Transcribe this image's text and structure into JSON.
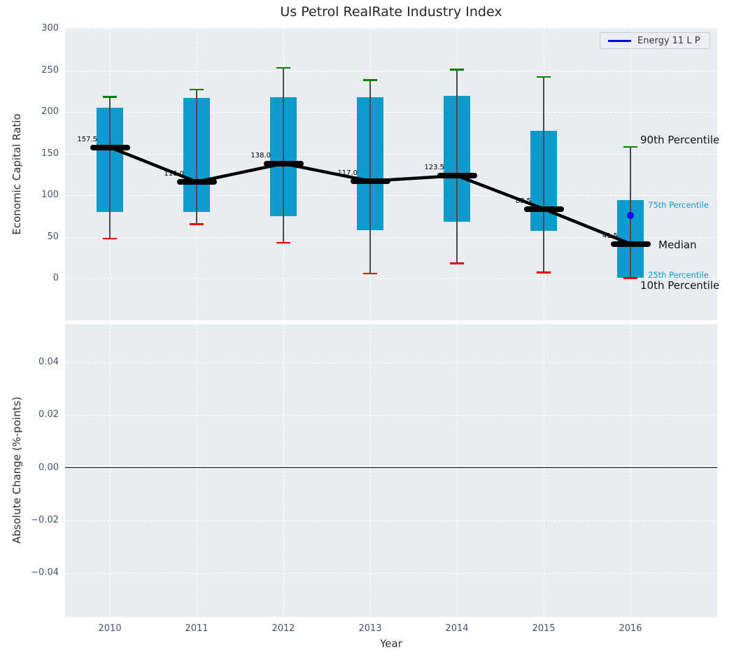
{
  "title": "Us Petrol RealRate Industry Index",
  "legend": {
    "label": "Energy 11 L P",
    "line_color": "#0000ee"
  },
  "colors": {
    "axes_bg": "#e9ecf0",
    "grid": "#ffffff",
    "box_fill": "#0f9bcb",
    "whisker": "#4a4a4a",
    "cap_high": "#008000",
    "cap_low": "#e60000",
    "median_bar": "#000000",
    "trend_line": "#000000",
    "point_blue": "#0000ee",
    "tick_label": "#44546a",
    "percentile_small_label": "#0f9bcb",
    "percentile_large_label": "#111111",
    "zero_line": "#000000"
  },
  "chart_data": [
    {
      "type": "boxplot",
      "title": "Us Petrol RealRate Industry Index",
      "xlabel": "Year",
      "ylabel": "Economic Capital Ratio",
      "categories": [
        "2010",
        "2011",
        "2012",
        "2013",
        "2014",
        "2015",
        "2016"
      ],
      "ylim": [
        -50,
        300
      ],
      "grid": true,
      "yticks": {
        "values": [
          300,
          250,
          200,
          150,
          100,
          50,
          0
        ],
        "labels": [
          "300",
          "250",
          "200",
          "150",
          "100",
          "50",
          "0"
        ]
      },
      "series": {
        "p90": [
          218,
          227,
          253,
          238,
          251,
          242,
          158
        ],
        "p75": [
          205,
          217,
          218,
          218,
          219,
          177,
          94
        ],
        "median": [
          157.5,
          116.0,
          138.0,
          117.0,
          123.5,
          83.5,
          41.5
        ],
        "p25": [
          80,
          80,
          75,
          58,
          68,
          57,
          1
        ],
        "p10": [
          48,
          65,
          43,
          6,
          18,
          7,
          0.5
        ]
      },
      "median_labels": [
        "157.5",
        "116.0",
        "138.0",
        "117.0",
        "123.5",
        "83.5",
        "41.5"
      ],
      "point": {
        "category": "2016",
        "value": 76,
        "series": "Energy 11 L P"
      },
      "percentile_labels": [
        {
          "text": "90th Percentile",
          "emphasis": "large"
        },
        {
          "text": "75th Percentile",
          "emphasis": "small"
        },
        {
          "text": "Median",
          "emphasis": "large"
        },
        {
          "text": "25th Percentile",
          "emphasis": "small"
        },
        {
          "text": "10th Percentile",
          "emphasis": "large"
        }
      ],
      "legend_position": "upper right"
    },
    {
      "type": "empty",
      "ylabel": "Absolute Change (%-points)",
      "categories": [
        "2010",
        "2011",
        "2012",
        "2013",
        "2014",
        "2015",
        "2016"
      ],
      "ylim": [
        -0.057,
        0.055
      ],
      "grid": true,
      "yticks": {
        "values": [
          0.04,
          0.02,
          0,
          -0.02,
          -0.04
        ],
        "labels": [
          "0.04",
          "0.02",
          "0.00",
          "−0.02",
          "−0.04"
        ]
      },
      "zero_line": 0
    }
  ]
}
